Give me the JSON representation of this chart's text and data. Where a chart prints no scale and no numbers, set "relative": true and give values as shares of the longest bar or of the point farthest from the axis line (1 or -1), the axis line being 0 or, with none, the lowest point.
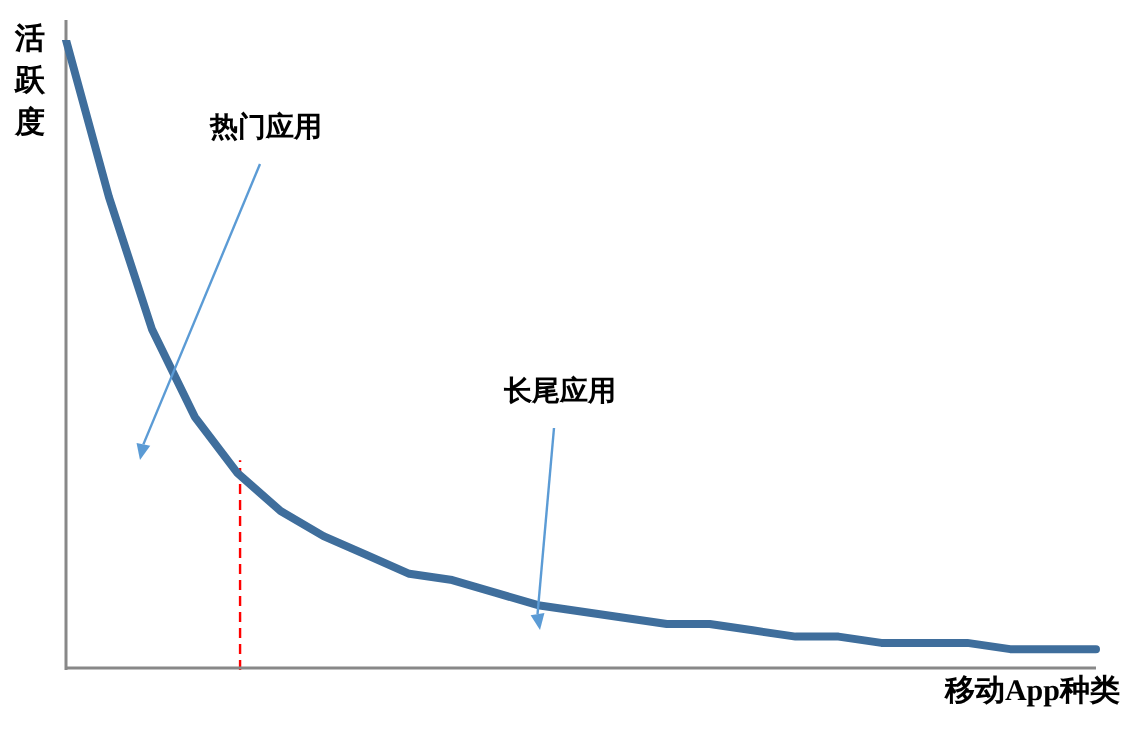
{
  "chart_data": {
    "type": "line",
    "relative": true,
    "xlabel": "移动App种类",
    "ylabel": "活跃度",
    "categories": [
      null,
      null,
      null,
      null,
      null,
      null,
      null,
      null,
      null,
      null,
      null,
      null,
      null,
      null,
      null,
      null,
      null,
      null,
      null,
      null,
      null,
      null,
      null,
      null,
      null
    ],
    "series": [
      {
        "color": "#3f6e9c",
        "values": [
          1,
          0.75,
          0.54,
          0.4,
          0.31,
          0.25,
          0.21,
          0.18,
          0.15,
          0.14,
          0.12,
          0.1,
          0.09,
          0.08,
          0.07,
          0.07,
          0.06,
          0.05,
          0.05,
          0.04,
          0.04,
          0.04,
          0.03,
          0.03,
          0.03
        ]
      }
    ],
    "annotations": [
      "热门应用",
      "长尾应用"
    ],
    "marker": "none",
    "line_style": "solid"
  }
}
